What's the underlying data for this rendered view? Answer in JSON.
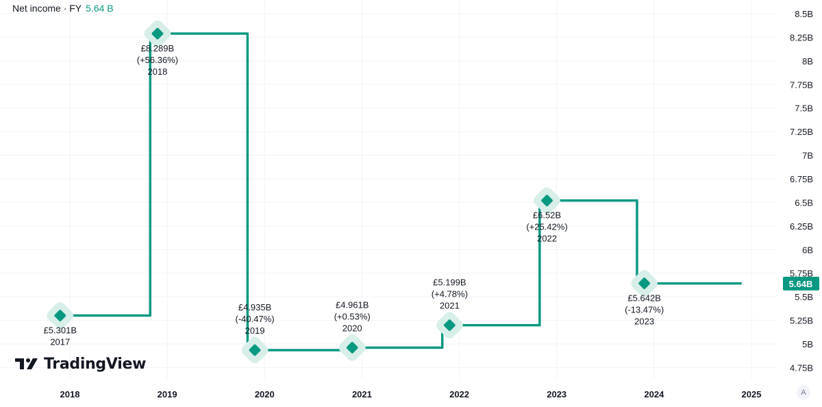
{
  "legend": {
    "label": "Net income · FY",
    "value": "5.64 B"
  },
  "brand": {
    "name": "TradingView"
  },
  "price_scale_button": "A",
  "last_value_badge": "5.64B",
  "colors": {
    "line": "#089981",
    "badge": "#089981",
    "grid": "#f0f3fa",
    "marker_halo": "#d7eee9",
    "text": "#131722"
  },
  "chart_data": {
    "type": "line",
    "step": true,
    "x_ticks": [
      "2018",
      "2019",
      "2020",
      "2021",
      "2022",
      "2023",
      "2024",
      "2025"
    ],
    "y_ticks": [
      "8.5B",
      "8.25B",
      "8B",
      "7.75B",
      "7.5B",
      "7.25B",
      "7B",
      "6.75B",
      "6.5B",
      "6.25B",
      "6B",
      "5.75B",
      "5.5B",
      "5.25B",
      "5B",
      "4.75B"
    ],
    "y_tick_values": [
      8.5,
      8.25,
      8.0,
      7.75,
      7.5,
      7.25,
      7.0,
      6.75,
      6.5,
      6.25,
      6.0,
      5.75,
      5.5,
      5.25,
      5.0,
      4.75
    ],
    "ylim": [
      4.6,
      8.6
    ],
    "xlim": [
      2017.8,
      2025.3
    ],
    "grid": true,
    "series": [
      {
        "points": [
          {
            "x": 2017.9,
            "y": 5.301,
            "value_label": "£5.301B",
            "change_label": "",
            "year_label": "2017",
            "label_pos": "below"
          },
          {
            "x": 2018.9,
            "y": 8.289,
            "value_label": "£8.289B",
            "change_label": "(+56.36%)",
            "year_label": "2018",
            "label_pos": "below"
          },
          {
            "x": 2019.9,
            "y": 4.935,
            "value_label": "£4.935B",
            "change_label": "(-40.47%)",
            "year_label": "2019",
            "label_pos": "above"
          },
          {
            "x": 2020.9,
            "y": 4.961,
            "value_label": "£4.961B",
            "change_label": "(+0.53%)",
            "year_label": "2020",
            "label_pos": "above"
          },
          {
            "x": 2021.9,
            "y": 5.199,
            "value_label": "£5.199B",
            "change_label": "(+4.78%)",
            "year_label": "2021",
            "label_pos": "above"
          },
          {
            "x": 2022.9,
            "y": 6.52,
            "value_label": "£6.52B",
            "change_label": "(+25.42%)",
            "year_label": "2022",
            "label_pos": "below"
          },
          {
            "x": 2023.9,
            "y": 5.642,
            "value_label": "£5.642B",
            "change_label": "(-13.47%)",
            "year_label": "2023",
            "label_pos": "below"
          }
        ],
        "extend_to_x": 2024.9
      }
    ],
    "last_value": 5.64
  }
}
